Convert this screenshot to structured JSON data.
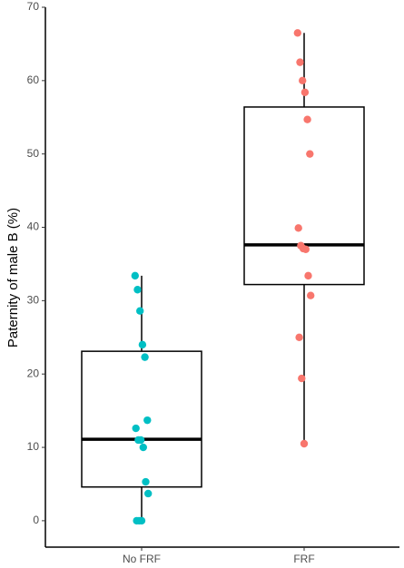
{
  "chart_data": {
    "type": "box",
    "y_label": "Paternity of male B (%)",
    "categories": [
      "No FRF",
      "FRF"
    ],
    "ylim": [
      -3.6,
      70
    ],
    "yticks": [
      0,
      10,
      20,
      30,
      40,
      50,
      60,
      70
    ],
    "boxes": [
      {
        "color": "#00BFC4",
        "whisker_low": 0,
        "q1": 4.6,
        "median": 11.1,
        "q3": 23.1,
        "whisker_high": 33.4,
        "points": [
          33.4,
          31.5,
          28.6,
          24.0,
          22.3,
          13.7,
          12.6,
          11.0,
          11.0,
          10.0,
          5.3,
          3.7,
          0,
          0,
          0
        ]
      },
      {
        "color": "#F8766D",
        "whisker_low": 10.5,
        "q1": 32.2,
        "median": 37.6,
        "q3": 56.4,
        "whisker_high": 66.5,
        "points": [
          66.5,
          62.5,
          60.0,
          58.4,
          54.7,
          50.0,
          39.9,
          37.5,
          37.1,
          37.0,
          33.4,
          30.7,
          25.0,
          19.4,
          10.5
        ]
      }
    ]
  }
}
